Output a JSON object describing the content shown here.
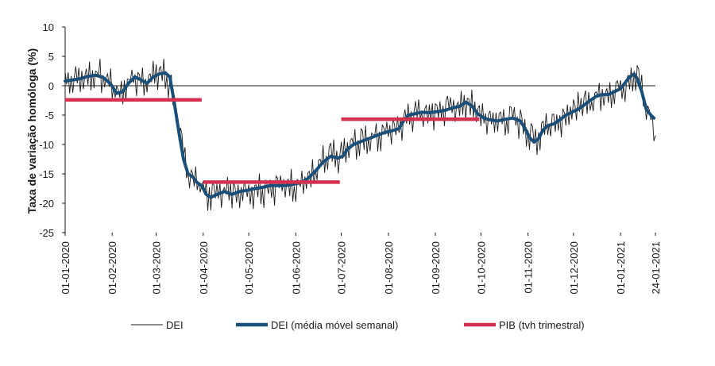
{
  "chart_data": {
    "type": "line",
    "ylabel": "Taxa de variação homóloga (%)",
    "xlabel": "",
    "ylim": [
      -25,
      10
    ],
    "yticks": [
      10,
      5,
      0,
      -5,
      -10,
      -15,
      -20,
      -25
    ],
    "ytick_labels": [
      "10",
      "5",
      "0",
      "-5",
      "-10",
      "-15",
      "-20",
      "-25"
    ],
    "x_range_days": [
      0,
      389
    ],
    "x_ticks": [
      {
        "day": 0,
        "label": "01-01-2020"
      },
      {
        "day": 31,
        "label": "01-02-2020"
      },
      {
        "day": 60,
        "label": "01-03-2020"
      },
      {
        "day": 91,
        "label": "01-04-2020"
      },
      {
        "day": 121,
        "label": "01-05-2020"
      },
      {
        "day": 152,
        "label": "01-06-2020"
      },
      {
        "day": 182,
        "label": "01-07-2020"
      },
      {
        "day": 213,
        "label": "01-08-2020"
      },
      {
        "day": 244,
        "label": "01-09-2020"
      },
      {
        "day": 274,
        "label": "01-10-2020"
      },
      {
        "day": 305,
        "label": "01-11-2020"
      },
      {
        "day": 335,
        "label": "01-12-2020"
      },
      {
        "day": 366,
        "label": "01-01-2021"
      },
      {
        "day": 389,
        "label": "24-01-2021"
      }
    ],
    "series": [
      {
        "name": "DEI",
        "color": "#1a1a1a",
        "style": "thin-daily",
        "trend_points": [
          [
            0,
            1.0
          ],
          [
            10,
            1.2
          ],
          [
            20,
            2.0
          ],
          [
            30,
            0.5
          ],
          [
            35,
            -1.5
          ],
          [
            40,
            0.0
          ],
          [
            45,
            1.5
          ],
          [
            50,
            0.5
          ],
          [
            55,
            1.5
          ],
          [
            60,
            2.0
          ],
          [
            65,
            1.8
          ],
          [
            70,
            0.0
          ],
          [
            75,
            -8.0
          ],
          [
            80,
            -14.0
          ],
          [
            85,
            -16.0
          ],
          [
            90,
            -17.0
          ],
          [
            95,
            -19.0
          ],
          [
            100,
            -18.0
          ],
          [
            110,
            -18.0
          ],
          [
            120,
            -18.0
          ],
          [
            130,
            -17.5
          ],
          [
            140,
            -17.0
          ],
          [
            150,
            -17.0
          ],
          [
            160,
            -16.0
          ],
          [
            165,
            -15.0
          ],
          [
            170,
            -13.0
          ],
          [
            175,
            -12.0
          ],
          [
            180,
            -12.5
          ],
          [
            185,
            -11.0
          ],
          [
            190,
            -10.0
          ],
          [
            200,
            -9.0
          ],
          [
            210,
            -8.0
          ],
          [
            220,
            -7.0
          ],
          [
            225,
            -5.0
          ],
          [
            230,
            -4.5
          ],
          [
            240,
            -4.5
          ],
          [
            250,
            -4.0
          ],
          [
            260,
            -3.5
          ],
          [
            265,
            -3.0
          ],
          [
            270,
            -4.0
          ],
          [
            275,
            -5.5
          ],
          [
            285,
            -6.0
          ],
          [
            295,
            -5.5
          ],
          [
            300,
            -6.0
          ],
          [
            305,
            -8.0
          ],
          [
            310,
            -9.5
          ],
          [
            315,
            -7.0
          ],
          [
            320,
            -6.5
          ],
          [
            330,
            -5.0
          ],
          [
            340,
            -3.5
          ],
          [
            350,
            -2.0
          ],
          [
            360,
            -1.0
          ],
          [
            365,
            -0.5
          ],
          [
            370,
            0.5
          ],
          [
            375,
            2.0
          ],
          [
            378,
            1.5
          ],
          [
            380,
            -1.0
          ],
          [
            383,
            -4.0
          ],
          [
            386,
            -5.5
          ],
          [
            389,
            -9.0
          ]
        ],
        "daily_noise_amplitude": 2.3
      },
      {
        "name": "DEI (média móvel semanal)",
        "color": "#1a4f7a",
        "style": "thick",
        "points": [
          [
            0,
            0.8
          ],
          [
            5,
            1.0
          ],
          [
            10,
            1.2
          ],
          [
            15,
            1.6
          ],
          [
            20,
            1.8
          ],
          [
            25,
            1.4
          ],
          [
            30,
            0.3
          ],
          [
            34,
            -1.3
          ],
          [
            38,
            -1.0
          ],
          [
            42,
            0.5
          ],
          [
            46,
            1.5
          ],
          [
            50,
            1.0
          ],
          [
            54,
            0.4
          ],
          [
            58,
            1.5
          ],
          [
            62,
            2.0
          ],
          [
            66,
            2.2
          ],
          [
            69,
            1.5
          ],
          [
            72,
            -3.0
          ],
          [
            75,
            -8.0
          ],
          [
            78,
            -12.5
          ],
          [
            81,
            -15.0
          ],
          [
            84,
            -15.5
          ],
          [
            87,
            -16.5
          ],
          [
            90,
            -17.0
          ],
          [
            93,
            -18.5
          ],
          [
            96,
            -19.0
          ],
          [
            100,
            -18.5
          ],
          [
            105,
            -18.0
          ],
          [
            110,
            -18.5
          ],
          [
            115,
            -18.0
          ],
          [
            120,
            -17.8
          ],
          [
            125,
            -17.5
          ],
          [
            130,
            -17.3
          ],
          [
            135,
            -17.0
          ],
          [
            140,
            -17.0
          ],
          [
            145,
            -17.0
          ],
          [
            150,
            -16.8
          ],
          [
            155,
            -16.5
          ],
          [
            160,
            -15.8
          ],
          [
            165,
            -14.5
          ],
          [
            170,
            -13.0
          ],
          [
            175,
            -12.0
          ],
          [
            180,
            -12.3
          ],
          [
            183,
            -12.0
          ],
          [
            186,
            -10.8
          ],
          [
            190,
            -10.0
          ],
          [
            195,
            -9.5
          ],
          [
            200,
            -9.0
          ],
          [
            205,
            -8.5
          ],
          [
            210,
            -8.0
          ],
          [
            215,
            -7.7
          ],
          [
            220,
            -7.3
          ],
          [
            223,
            -6.0
          ],
          [
            226,
            -5.0
          ],
          [
            230,
            -4.8
          ],
          [
            235,
            -4.5
          ],
          [
            240,
            -4.6
          ],
          [
            245,
            -4.4
          ],
          [
            250,
            -4.2
          ],
          [
            255,
            -3.8
          ],
          [
            260,
            -3.5
          ],
          [
            264,
            -2.8
          ],
          [
            268,
            -3.4
          ],
          [
            272,
            -4.8
          ],
          [
            276,
            -5.5
          ],
          [
            280,
            -5.8
          ],
          [
            285,
            -6.0
          ],
          [
            290,
            -5.7
          ],
          [
            295,
            -5.5
          ],
          [
            300,
            -6.0
          ],
          [
            303,
            -7.2
          ],
          [
            306,
            -8.8
          ],
          [
            309,
            -9.6
          ],
          [
            312,
            -9.0
          ],
          [
            315,
            -7.5
          ],
          [
            318,
            -6.8
          ],
          [
            322,
            -6.5
          ],
          [
            326,
            -5.8
          ],
          [
            330,
            -5.0
          ],
          [
            334,
            -4.5
          ],
          [
            338,
            -4.0
          ],
          [
            342,
            -3.3
          ],
          [
            346,
            -2.5
          ],
          [
            350,
            -1.8
          ],
          [
            354,
            -1.5
          ],
          [
            358,
            -1.5
          ],
          [
            362,
            -1.0
          ],
          [
            366,
            -0.5
          ],
          [
            369,
            0.5
          ],
          [
            372,
            1.5
          ],
          [
            375,
            2.0
          ],
          [
            377,
            1.2
          ],
          [
            380,
            -1.0
          ],
          [
            383,
            -4.0
          ],
          [
            386,
            -5.0
          ],
          [
            388,
            -5.5
          ]
        ]
      },
      {
        "name": "PIB (tvh trimestral)",
        "color": "#d6304f",
        "style": "step",
        "segments": [
          {
            "x0": 0,
            "x1": 90,
            "y": -2.4
          },
          {
            "x0": 91,
            "x1": 181,
            "y": -16.4
          },
          {
            "x0": 182,
            "x1": 273,
            "y": -5.7
          }
        ]
      }
    ],
    "legend": [
      {
        "label": "DEI"
      },
      {
        "label": "DEI (média móvel semanal)"
      },
      {
        "label": "PIB (tvh trimestral)"
      }
    ],
    "legend_position": "bottom"
  }
}
